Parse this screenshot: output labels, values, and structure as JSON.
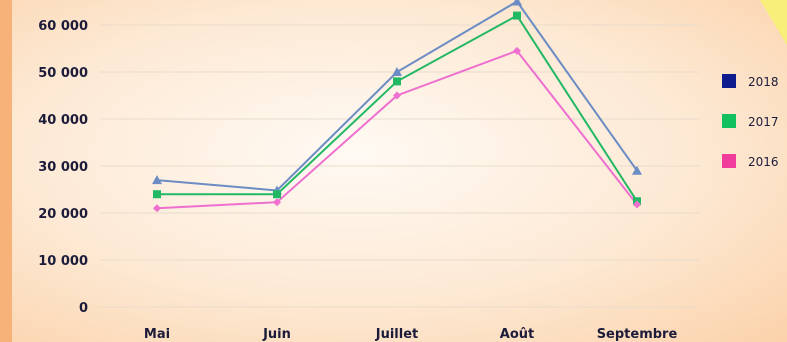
{
  "chart_data": {
    "type": "line",
    "title": "",
    "xlabel": "",
    "ylabel": "",
    "categories": [
      "Mai",
      "Juin",
      "Juillet",
      "Août",
      "Septembre"
    ],
    "ylim": [
      0,
      65000
    ],
    "yticks": [
      0,
      10000,
      20000,
      30000,
      40000,
      50000,
      60000
    ],
    "ytick_labels": [
      "0",
      "10 000",
      "20 000",
      "30 000",
      "40 000",
      "50 000",
      "60 000"
    ],
    "grid": true,
    "legend_position": "right",
    "series": [
      {
        "name": "2018",
        "color": "#6b8cc4",
        "legend_color": "#0d1b8c",
        "marker": "triangle",
        "values": [
          27000,
          24800,
          50000,
          65000,
          29000
        ]
      },
      {
        "name": "2017",
        "color": "#22b864",
        "legend_color": "#12c060",
        "marker": "square",
        "values": [
          24000,
          24000,
          48000,
          62000,
          22500
        ]
      },
      {
        "name": "2016",
        "color": "#ee6fcf",
        "legend_color": "#f23c9c",
        "marker": "diamond",
        "values": [
          21000,
          22300,
          45000,
          54500,
          21800
        ]
      }
    ]
  }
}
